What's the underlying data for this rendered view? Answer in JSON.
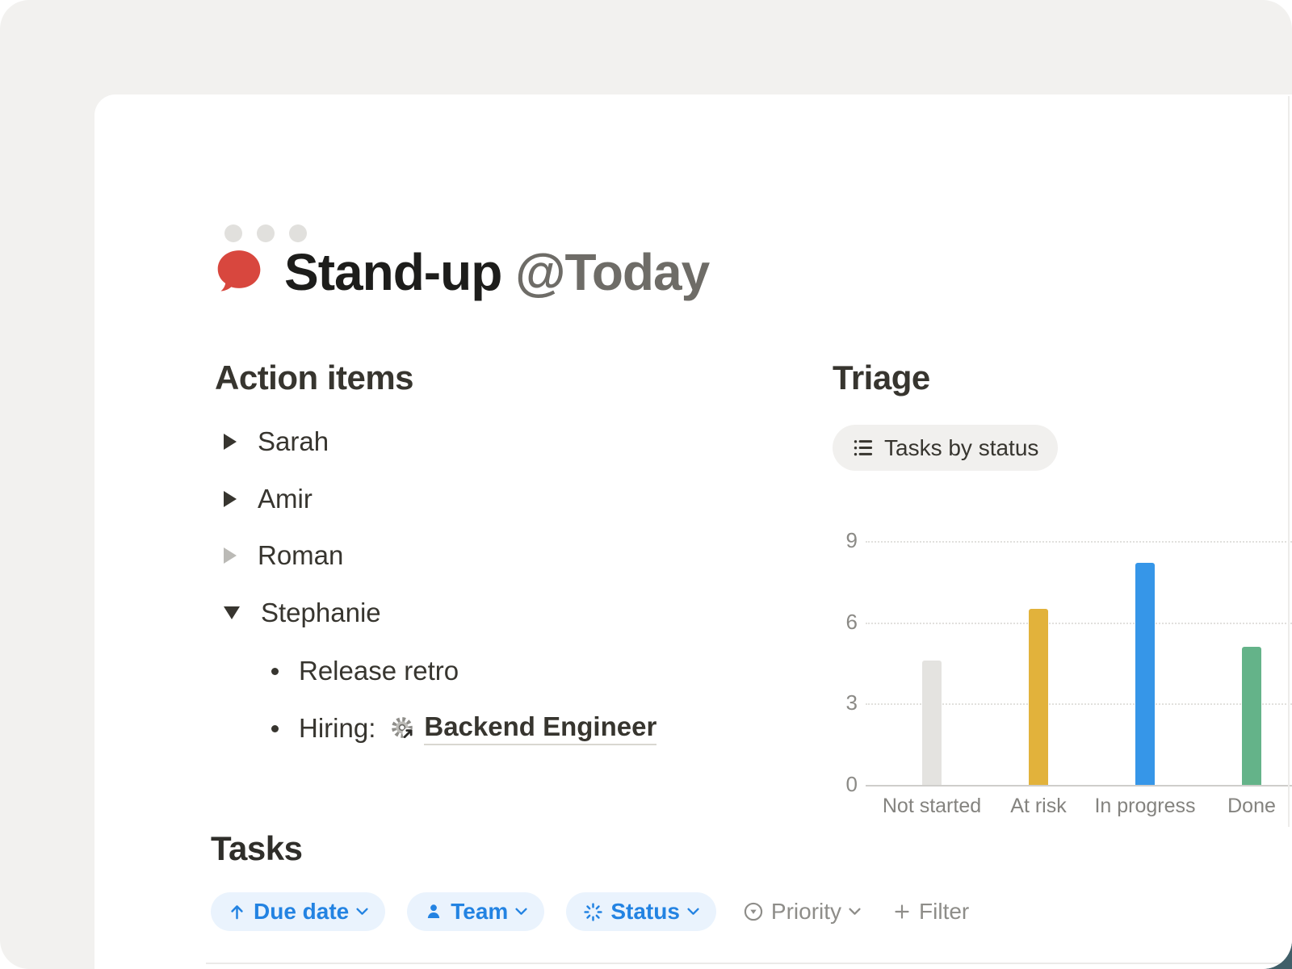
{
  "window": {
    "traffic_dots": 3
  },
  "page": {
    "icon": "speech-bubble",
    "title_main": "Stand-up ",
    "title_mention": "@Today"
  },
  "action_items": {
    "heading": "Action items",
    "toggles": [
      {
        "label": "Sarah",
        "state": "collapsed",
        "arrow": "dark"
      },
      {
        "label": "Amir",
        "state": "collapsed",
        "arrow": "dark"
      },
      {
        "label": "Roman",
        "state": "collapsed",
        "arrow": "muted"
      },
      {
        "label": "Stephanie",
        "state": "expanded",
        "arrow": "dark"
      }
    ],
    "expanded_items": {
      "bullet_1": "Release retro",
      "bullet_2_prefix": "Hiring:",
      "bullet_2_link": "Backend Engineer",
      "bullet_2_link_icon": "gear-arrow-page-mention"
    }
  },
  "triage": {
    "heading": "Triage",
    "view_chip_label": "Tasks by status",
    "view_chip_icon": "bulleted-list-icon"
  },
  "chart_data": {
    "type": "bar",
    "title": "Tasks by status",
    "categories": [
      "Not started",
      "At risk",
      "In progress",
      "Done"
    ],
    "values": [
      4.6,
      6.5,
      8.2,
      5.1
    ],
    "bar_colors": [
      "#E4E3E0",
      "#E2B23B",
      "#3696E8",
      "#64B389"
    ],
    "yticks": [
      0,
      3,
      6,
      9
    ],
    "ylim": [
      0,
      10
    ],
    "grid": "horizontal-dotted",
    "legend": "none",
    "xlabel": "",
    "ylabel": ""
  },
  "tasks": {
    "heading": "Tasks",
    "filters": [
      {
        "label": "Due date",
        "icon": "arrow-up",
        "style": "active",
        "has_chevron": true
      },
      {
        "label": "Team",
        "icon": "person",
        "style": "active",
        "has_chevron": true
      },
      {
        "label": "Status",
        "icon": "in-progress-spinner",
        "style": "active",
        "has_chevron": true
      },
      {
        "label": "Priority",
        "icon": "priority-circle-triangle",
        "style": "inactive",
        "has_chevron": true
      },
      {
        "label": "Filter",
        "icon": "plus",
        "style": "inactive",
        "has_chevron": false
      }
    ]
  },
  "colors": {
    "canvas_bg": "#F2F1EF",
    "window_bg": "#FFFFFF",
    "text": "#37352F",
    "mention_gray": "#6E6C67",
    "accent_blue": "#2383E2",
    "chip_blue_bg": "#EAF3FD",
    "muted_gray": "#8E8D89",
    "page_icon_red": "#D8473E",
    "traffic_dot": "#E1E0DD",
    "corner_dark": "#415F69",
    "bar_gray": "#E4E3E0",
    "bar_yellow": "#E2B23B",
    "bar_blue": "#3696E8",
    "bar_green": "#64B389"
  }
}
